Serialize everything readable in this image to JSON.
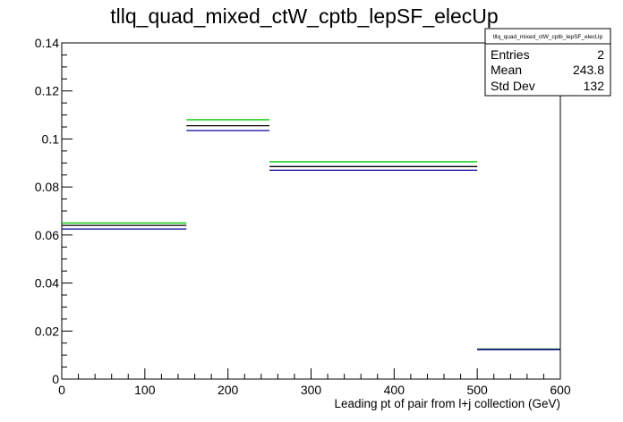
{
  "chart_data": {
    "type": "line",
    "title": "tllq_quad_mixed_ctW_cptb_lepSF_elecUp",
    "xlabel": "Leading pt of pair from l+j collection (GeV)",
    "ylabel": "",
    "xlim": [
      0,
      600
    ],
    "ylim": [
      0,
      0.14
    ],
    "x_ticks": [
      0,
      100,
      200,
      300,
      400,
      500,
      600
    ],
    "y_ticks": [
      0,
      0.02,
      0.04,
      0.06,
      0.08,
      0.1,
      0.12,
      0.14
    ],
    "x_tick_labels": [
      "0",
      "100",
      "200",
      "300",
      "400",
      "500",
      "600"
    ],
    "y_tick_labels": [
      "0",
      "0.02",
      "0.04",
      "0.06",
      "0.08",
      "0.1",
      "0.12",
      "0.14"
    ],
    "bin_edges": [
      0,
      150,
      250,
      500,
      600
    ],
    "series": [
      {
        "color": "#00cc00",
        "values": [
          0.065,
          0.108,
          0.0905,
          0.0125
        ]
      },
      {
        "color": "#000000",
        "values": [
          0.064,
          0.1055,
          0.0885,
          0.0124
        ]
      },
      {
        "color": "#000099",
        "values": [
          0.0625,
          0.1035,
          0.087,
          0.0123
        ]
      }
    ],
    "grid": false,
    "stats_box": {
      "title": "tllq_quad_mixed_ctW_cptb_lepSF_elecUp",
      "rows": [
        {
          "label": "Entries",
          "value": "2"
        },
        {
          "label": "Mean",
          "value": "243.8"
        },
        {
          "label": "Std Dev",
          "value": "132"
        }
      ]
    }
  }
}
